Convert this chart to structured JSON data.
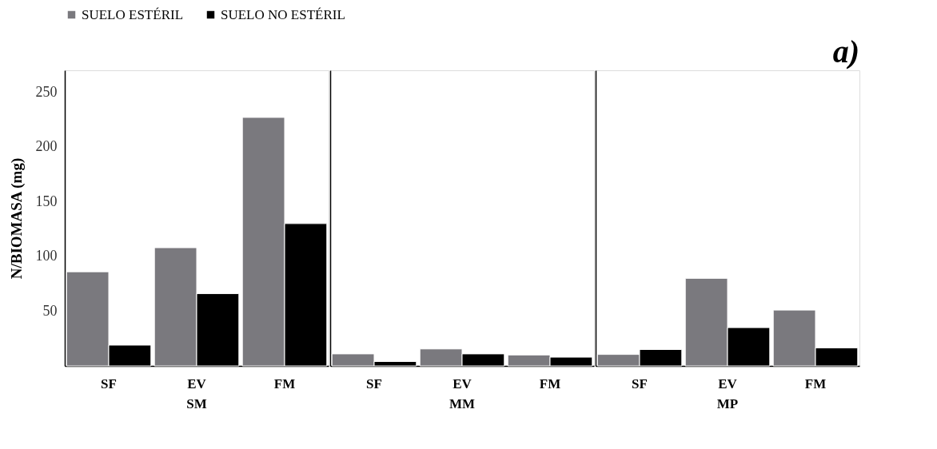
{
  "chart_data": [
    {
      "type": "bar",
      "title": "SM",
      "ylabel": "N/BIOMASA (mg)",
      "categories": [
        "SF",
        "EV",
        "FM"
      ],
      "ylim": [
        0,
        270
      ],
      "yticks": [
        50,
        100,
        150,
        200,
        250
      ],
      "legend": "top",
      "grid": false,
      "series": [
        {
          "name": "SUELO ESTÉRIL",
          "color": "#7a797e",
          "values": [
            86,
            108,
            227
          ]
        },
        {
          "name": "SUELO NO ESTÉRIL",
          "color": "#000000",
          "values": [
            19,
            66,
            130
          ]
        }
      ]
    },
    {
      "type": "bar",
      "title": "MM",
      "categories": [
        "SF",
        "EV",
        "FM"
      ],
      "ylim": [
        0,
        270
      ],
      "tick_labels": "x",
      "grid": false,
      "series": [
        {
          "name": "SUELO ESTÉRIL",
          "color": "#7a797e",
          "values": [
            11,
            15.5,
            10
          ]
        },
        {
          "name": "SUELO NO ESTÉRIL",
          "color": "#000000",
          "values": [
            4,
            11,
            8
          ]
        }
      ]
    },
    {
      "type": "bar",
      "title": "MP",
      "categories": [
        "SF",
        "EV",
        "FM"
      ],
      "ylim": [
        0,
        270
      ],
      "tick_labels": "x",
      "grid": false,
      "annotations": [
        "a)"
      ],
      "series": [
        {
          "name": "SUELO ESTÉRIL",
          "color": "#7a797e",
          "values": [
            10.5,
            80,
            51
          ]
        },
        {
          "name": "SUELO NO ESTÉRIL",
          "color": "#000000",
          "values": [
            15,
            35,
            16.5
          ]
        }
      ]
    }
  ]
}
